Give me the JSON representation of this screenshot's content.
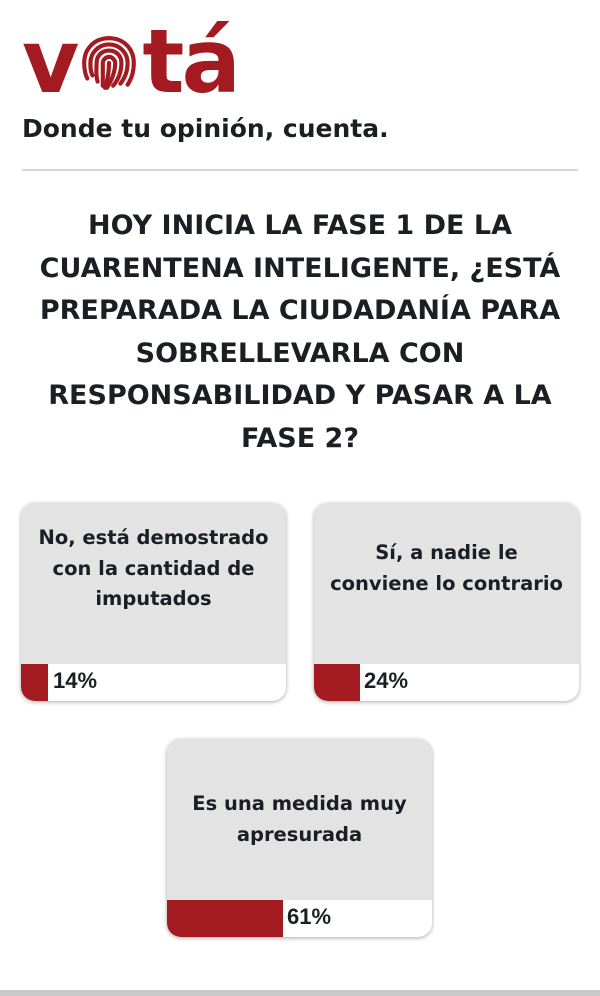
{
  "brand": {
    "logo_left": "v",
    "logo_right": "tá",
    "tagline": "Donde tu opinión, cuenta.",
    "color": "#a31b20"
  },
  "question": "HOY INICIA LA FASE 1 DE LA CUARENTENA INTELIGENTE, ¿ESTÁ PREPARADA LA CIUDADANÍA PARA SOBRELLEVARLA CON RESPONSABILIDAD Y PASAR A LA FASE 2?",
  "options": [
    {
      "label": "No, está demostrado con la cantidad de imputados",
      "percent_text": "14%",
      "percent": 14
    },
    {
      "label": "Sí, a nadie le conviene lo contrario",
      "percent_text": "24%",
      "percent": 24
    },
    {
      "label": "Es una medida muy apresurada",
      "percent_text": "61%",
      "percent": 61
    }
  ],
  "icons": {
    "logo_o": "fingerprint-icon"
  }
}
